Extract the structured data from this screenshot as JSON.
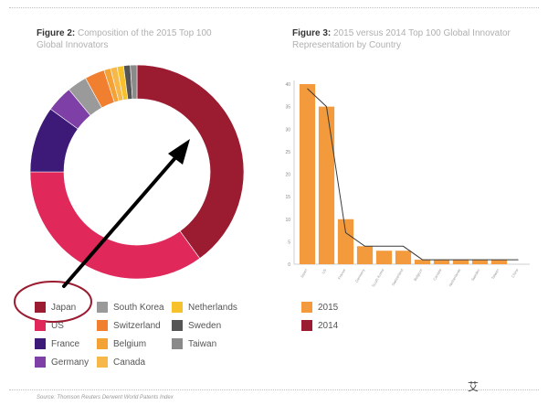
{
  "fig2": {
    "prefix": "Figure 2:",
    "title_line1": "Composition of the 2015 Top 100",
    "title_line2": "Global Innovators"
  },
  "fig3": {
    "prefix": "Figure 3:",
    "title_line1": "2015 versus 2014 Top 100 Global Innovator",
    "title_line2": "Representation by Country"
  },
  "source": "Source: Thomson Reuters Derwent World Patents Index",
  "watermark": "艾",
  "colors": {
    "japan": "#9b1b30",
    "us": "#e0285a",
    "france": "#3d1a78",
    "germany": "#7e3fa6",
    "south_korea": "#9a9a9a",
    "switzerland": "#f08030",
    "belgium": "#f4a236",
    "canada": "#f6b84b",
    "netherlands": "#f7c12c",
    "sweden": "#555555",
    "taiwan": "#8a8a8a",
    "bar2015": "#f29a3c",
    "line2014": "#3a3a3a",
    "annotation": "#9b1b30"
  },
  "chart_data": [
    {
      "type": "pie",
      "title": "Composition of the 2015 Top 100 Global Innovators",
      "slices": [
        {
          "name": "Japan",
          "value": 40,
          "color_key": "japan"
        },
        {
          "name": "US",
          "value": 35,
          "color_key": "us"
        },
        {
          "name": "France",
          "value": 10,
          "color_key": "france"
        },
        {
          "name": "Germany",
          "value": 4,
          "color_key": "germany"
        },
        {
          "name": "South Korea",
          "value": 3,
          "color_key": "south_korea"
        },
        {
          "name": "Switzerland",
          "value": 3,
          "color_key": "switzerland"
        },
        {
          "name": "Belgium",
          "value": 1,
          "color_key": "belgium"
        },
        {
          "name": "Canada",
          "value": 1,
          "color_key": "canada"
        },
        {
          "name": "Netherlands",
          "value": 1,
          "color_key": "netherlands"
        },
        {
          "name": "Sweden",
          "value": 1,
          "color_key": "sweden"
        },
        {
          "name": "Taiwan",
          "value": 1,
          "color_key": "taiwan"
        }
      ],
      "annotation": {
        "highlighted": "Japan"
      }
    },
    {
      "type": "bar",
      "title": "2015 versus 2014 Top 100 Global Innovator Representation by Country",
      "categories": [
        "Japan",
        "US",
        "France",
        "Germany",
        "South Korea",
        "Switzerland",
        "Belgium",
        "Canada",
        "Netherlands",
        "Sweden",
        "Taiwan",
        "China"
      ],
      "series": [
        {
          "name": "2015",
          "kind": "bar",
          "values": [
            40,
            35,
            10,
            4,
            3,
            3,
            1,
            1,
            1,
            1,
            1,
            0
          ]
        },
        {
          "name": "2014",
          "kind": "line",
          "values": [
            39,
            35,
            7,
            4,
            4,
            4,
            1,
            1,
            1,
            1,
            1,
            1
          ]
        }
      ],
      "yticks": [
        0,
        5,
        10,
        15,
        20,
        25,
        30,
        35,
        40
      ],
      "ylim": [
        0,
        40
      ],
      "legend_position": "bottom-left"
    }
  ]
}
